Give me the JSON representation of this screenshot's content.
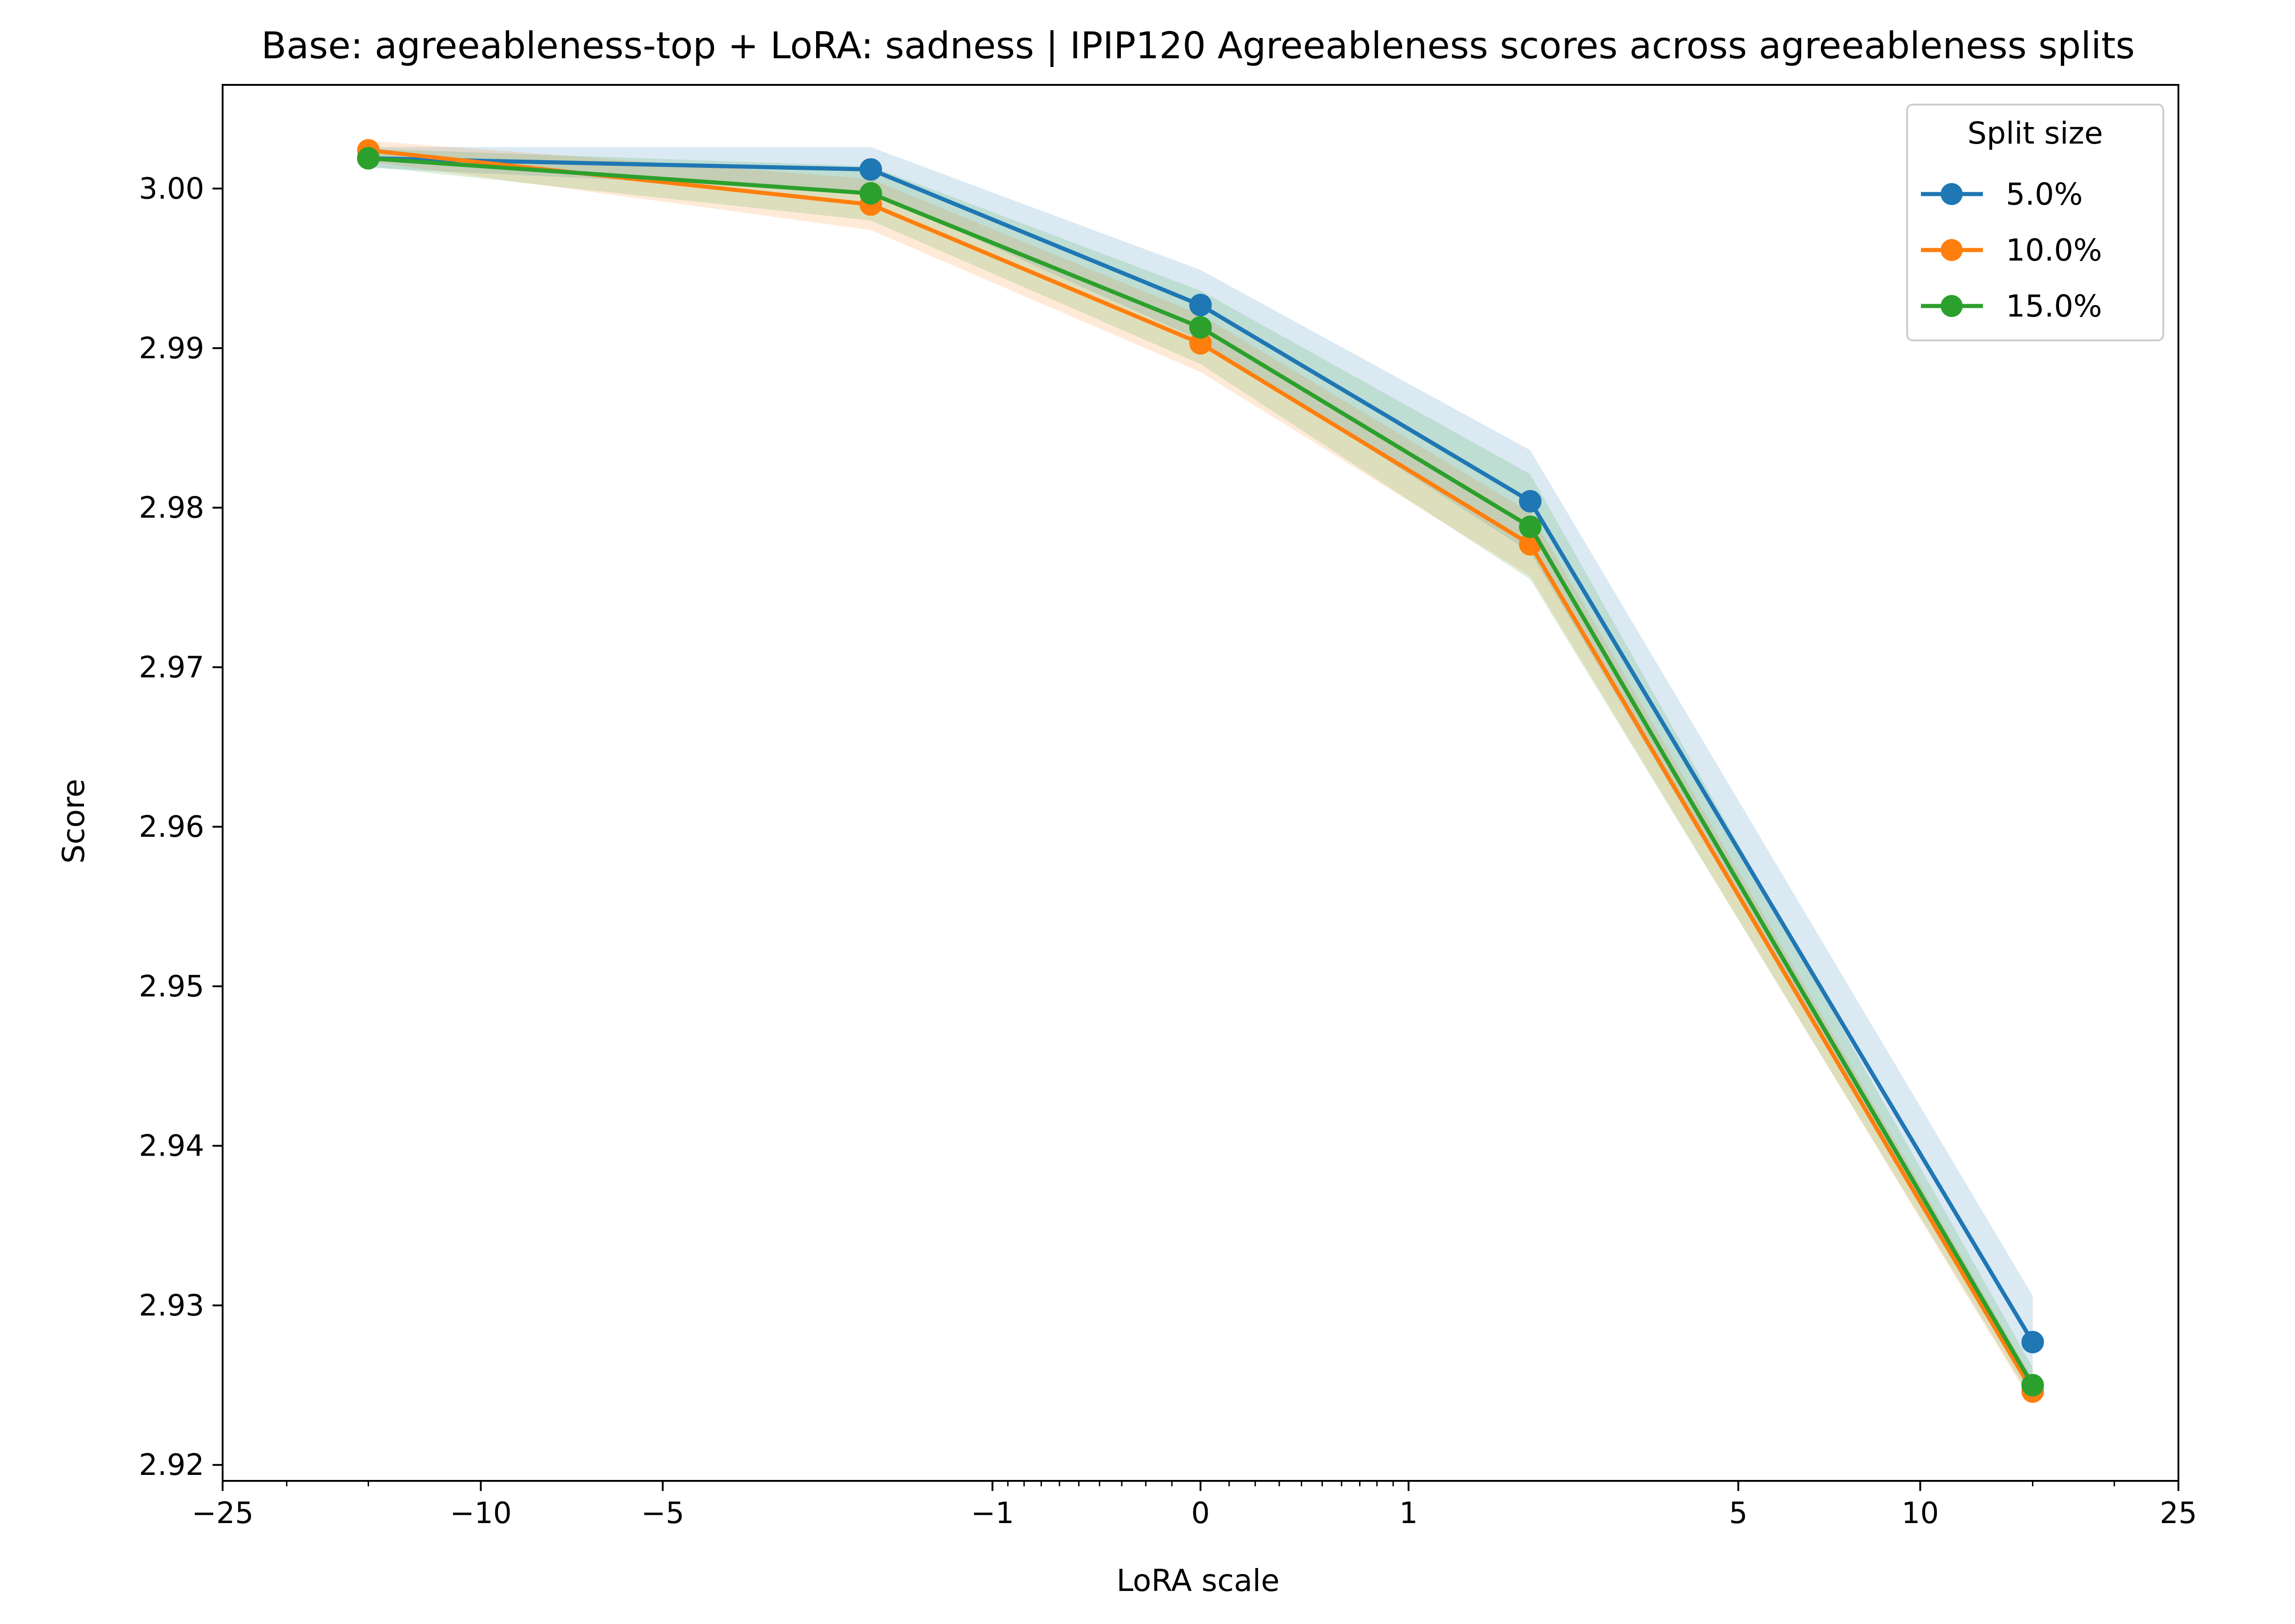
{
  "chart_data": {
    "type": "line",
    "title": "Base: agreeableness-top + LoRA: sadness | IPIP120 Agreeableness scores across agreeableness splits",
    "xlabel": "LoRA scale",
    "ylabel": "Score",
    "x_scale": "symlog",
    "x": [
      -15,
      -2,
      0,
      2,
      15
    ],
    "xlim": [
      -25,
      25
    ],
    "ylim": [
      2.919,
      3.0065
    ],
    "x_ticks": [
      -25,
      -10,
      -5,
      -1,
      0,
      1,
      5,
      10,
      25
    ],
    "x_tick_labels": [
      "−25",
      "−10",
      "−5",
      "−1",
      "0",
      "1",
      "5",
      "10",
      "25"
    ],
    "y_ticks": [
      2.92,
      2.93,
      2.94,
      2.95,
      2.96,
      2.97,
      2.98,
      2.99,
      3.0
    ],
    "y_tick_labels": [
      "2.92",
      "2.93",
      "2.94",
      "2.95",
      "2.96",
      "2.97",
      "2.98",
      "2.99",
      "3.00"
    ],
    "legend": {
      "title": "Split size",
      "position": "top-right"
    },
    "series": [
      {
        "name": "5.0%",
        "color": "#1f77b4",
        "values": [
          3.0019,
          3.0012,
          2.9927,
          2.9804,
          2.9277
        ],
        "lower": [
          3.0013,
          2.9998,
          2.9905,
          2.9772,
          2.9248
        ],
        "upper": [
          3.0026,
          3.0026,
          2.9949,
          2.9836,
          2.9306
        ]
      },
      {
        "name": "10.0%",
        "color": "#ff7f0e",
        "values": [
          3.0024,
          2.999,
          2.9903,
          2.9777,
          2.9246
        ],
        "lower": [
          3.0017,
          2.9974,
          2.9885,
          2.9757,
          2.9238
        ],
        "upper": [
          3.003,
          3.0006,
          2.9921,
          2.9797,
          2.9254
        ]
      },
      {
        "name": "15.0%",
        "color": "#2ca02c",
        "values": [
          3.0019,
          2.9997,
          2.9913,
          2.9788,
          2.925
        ],
        "lower": [
          3.0014,
          2.998,
          2.989,
          2.9755,
          2.924
        ],
        "upper": [
          3.0025,
          3.0014,
          2.9936,
          2.9821,
          2.9261
        ]
      }
    ]
  }
}
